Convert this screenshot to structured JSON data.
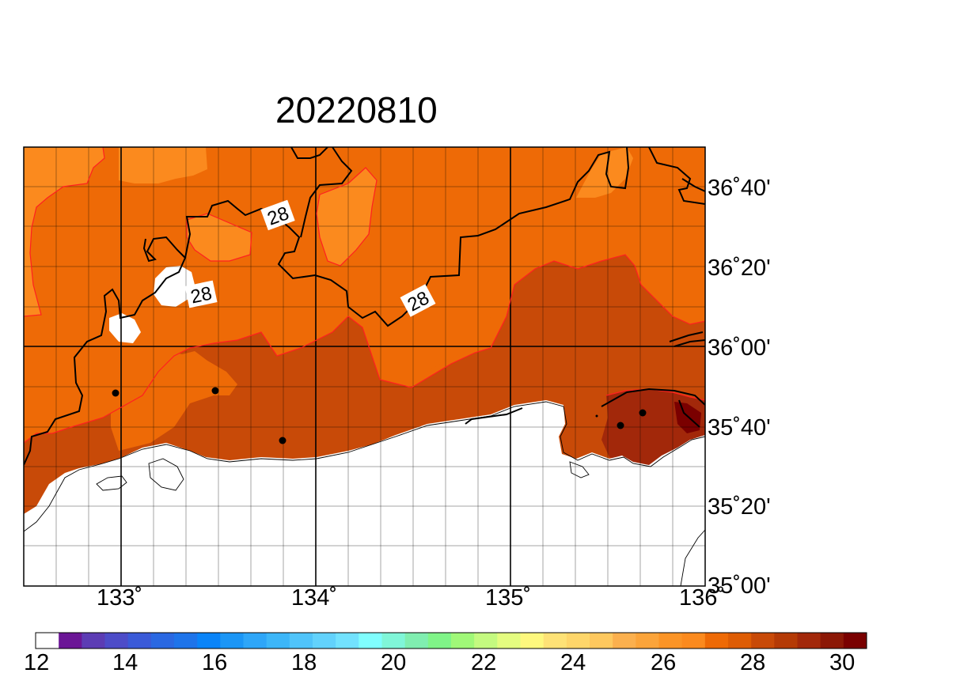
{
  "title": "20220810",
  "map": {
    "lon_range": [
      132.5,
      136.0
    ],
    "lat_range": [
      35.0,
      36.833
    ],
    "lat_ticks": [
      "36˚40'",
      "36˚20'",
      "36˚00'",
      "35˚40'",
      "35˚20'",
      "35˚00'"
    ],
    "lon_ticks": [
      "133˚",
      "134˚",
      "135˚",
      "136˚"
    ],
    "contour_labels": [
      "28",
      "28",
      "28"
    ],
    "grid": true,
    "stations": 6,
    "colors": {
      "level_26_27": "#fb8a1e",
      "level_27_28": "#ee6a06",
      "level_28_29": "#c84a08",
      "level_29_30": "#a2280a",
      "level_30p": "#7a0000",
      "contour_red": "#ff2020"
    }
  },
  "colorbar": {
    "tick_labels": [
      "12",
      "14",
      "16",
      "18",
      "20",
      "22",
      "24",
      "26",
      "28",
      "30"
    ],
    "colors": [
      "#ffffff",
      "#6b1696",
      "#5c3cb4",
      "#4d4cc8",
      "#3a5ad8",
      "#2a68e2",
      "#1e74ea",
      "#0a84f8",
      "#1b96f6",
      "#2ea6f8",
      "#3cb6f8",
      "#50c4fa",
      "#62d2fc",
      "#72e2fe",
      "#80fefe",
      "#80f6d8",
      "#80eeb0",
      "#80f488",
      "#a0f878",
      "#c4fa80",
      "#e4fc80",
      "#fef87e",
      "#fee276",
      "#fed66a",
      "#fec85e",
      "#fbb04e",
      "#fba43a",
      "#fb9426",
      "#fb8a1e",
      "#ee6a06",
      "#de5c04",
      "#c84a08",
      "#b43a06",
      "#a2280a",
      "#8c1806",
      "#7a0000"
    ]
  }
}
